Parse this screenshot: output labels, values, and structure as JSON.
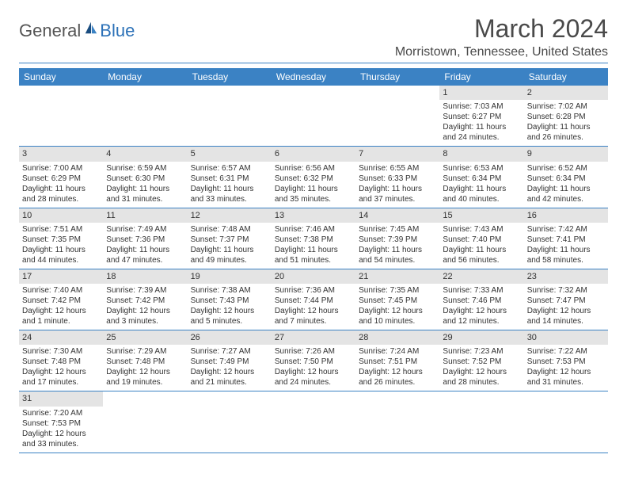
{
  "logo": {
    "text1": "General",
    "text2": "Blue"
  },
  "title": "March 2024",
  "location": "Morristown, Tennessee, United States",
  "header_bg": "#3b82c4",
  "header_fg": "#ffffff",
  "daynum_bg": "#e4e4e4",
  "border_color": "#3b82c4",
  "day_headers": [
    "Sunday",
    "Monday",
    "Tuesday",
    "Wednesday",
    "Thursday",
    "Friday",
    "Saturday"
  ],
  "weeks": [
    [
      null,
      null,
      null,
      null,
      null,
      {
        "n": "1",
        "sr": "7:03 AM",
        "ss": "6:27 PM",
        "dl": "11 hours and 24 minutes."
      },
      {
        "n": "2",
        "sr": "7:02 AM",
        "ss": "6:28 PM",
        "dl": "11 hours and 26 minutes."
      }
    ],
    [
      {
        "n": "3",
        "sr": "7:00 AM",
        "ss": "6:29 PM",
        "dl": "11 hours and 28 minutes."
      },
      {
        "n": "4",
        "sr": "6:59 AM",
        "ss": "6:30 PM",
        "dl": "11 hours and 31 minutes."
      },
      {
        "n": "5",
        "sr": "6:57 AM",
        "ss": "6:31 PM",
        "dl": "11 hours and 33 minutes."
      },
      {
        "n": "6",
        "sr": "6:56 AM",
        "ss": "6:32 PM",
        "dl": "11 hours and 35 minutes."
      },
      {
        "n": "7",
        "sr": "6:55 AM",
        "ss": "6:33 PM",
        "dl": "11 hours and 37 minutes."
      },
      {
        "n": "8",
        "sr": "6:53 AM",
        "ss": "6:34 PM",
        "dl": "11 hours and 40 minutes."
      },
      {
        "n": "9",
        "sr": "6:52 AM",
        "ss": "6:34 PM",
        "dl": "11 hours and 42 minutes."
      }
    ],
    [
      {
        "n": "10",
        "sr": "7:51 AM",
        "ss": "7:35 PM",
        "dl": "11 hours and 44 minutes."
      },
      {
        "n": "11",
        "sr": "7:49 AM",
        "ss": "7:36 PM",
        "dl": "11 hours and 47 minutes."
      },
      {
        "n": "12",
        "sr": "7:48 AM",
        "ss": "7:37 PM",
        "dl": "11 hours and 49 minutes."
      },
      {
        "n": "13",
        "sr": "7:46 AM",
        "ss": "7:38 PM",
        "dl": "11 hours and 51 minutes."
      },
      {
        "n": "14",
        "sr": "7:45 AM",
        "ss": "7:39 PM",
        "dl": "11 hours and 54 minutes."
      },
      {
        "n": "15",
        "sr": "7:43 AM",
        "ss": "7:40 PM",
        "dl": "11 hours and 56 minutes."
      },
      {
        "n": "16",
        "sr": "7:42 AM",
        "ss": "7:41 PM",
        "dl": "11 hours and 58 minutes."
      }
    ],
    [
      {
        "n": "17",
        "sr": "7:40 AM",
        "ss": "7:42 PM",
        "dl": "12 hours and 1 minute."
      },
      {
        "n": "18",
        "sr": "7:39 AM",
        "ss": "7:42 PM",
        "dl": "12 hours and 3 minutes."
      },
      {
        "n": "19",
        "sr": "7:38 AM",
        "ss": "7:43 PM",
        "dl": "12 hours and 5 minutes."
      },
      {
        "n": "20",
        "sr": "7:36 AM",
        "ss": "7:44 PM",
        "dl": "12 hours and 7 minutes."
      },
      {
        "n": "21",
        "sr": "7:35 AM",
        "ss": "7:45 PM",
        "dl": "12 hours and 10 minutes."
      },
      {
        "n": "22",
        "sr": "7:33 AM",
        "ss": "7:46 PM",
        "dl": "12 hours and 12 minutes."
      },
      {
        "n": "23",
        "sr": "7:32 AM",
        "ss": "7:47 PM",
        "dl": "12 hours and 14 minutes."
      }
    ],
    [
      {
        "n": "24",
        "sr": "7:30 AM",
        "ss": "7:48 PM",
        "dl": "12 hours and 17 minutes."
      },
      {
        "n": "25",
        "sr": "7:29 AM",
        "ss": "7:48 PM",
        "dl": "12 hours and 19 minutes."
      },
      {
        "n": "26",
        "sr": "7:27 AM",
        "ss": "7:49 PM",
        "dl": "12 hours and 21 minutes."
      },
      {
        "n": "27",
        "sr": "7:26 AM",
        "ss": "7:50 PM",
        "dl": "12 hours and 24 minutes."
      },
      {
        "n": "28",
        "sr": "7:24 AM",
        "ss": "7:51 PM",
        "dl": "12 hours and 26 minutes."
      },
      {
        "n": "29",
        "sr": "7:23 AM",
        "ss": "7:52 PM",
        "dl": "12 hours and 28 minutes."
      },
      {
        "n": "30",
        "sr": "7:22 AM",
        "ss": "7:53 PM",
        "dl": "12 hours and 31 minutes."
      }
    ],
    [
      {
        "n": "31",
        "sr": "7:20 AM",
        "ss": "7:53 PM",
        "dl": "12 hours and 33 minutes."
      },
      null,
      null,
      null,
      null,
      null,
      null
    ]
  ],
  "labels": {
    "sunrise": "Sunrise:",
    "sunset": "Sunset:",
    "daylight": "Daylight:"
  }
}
